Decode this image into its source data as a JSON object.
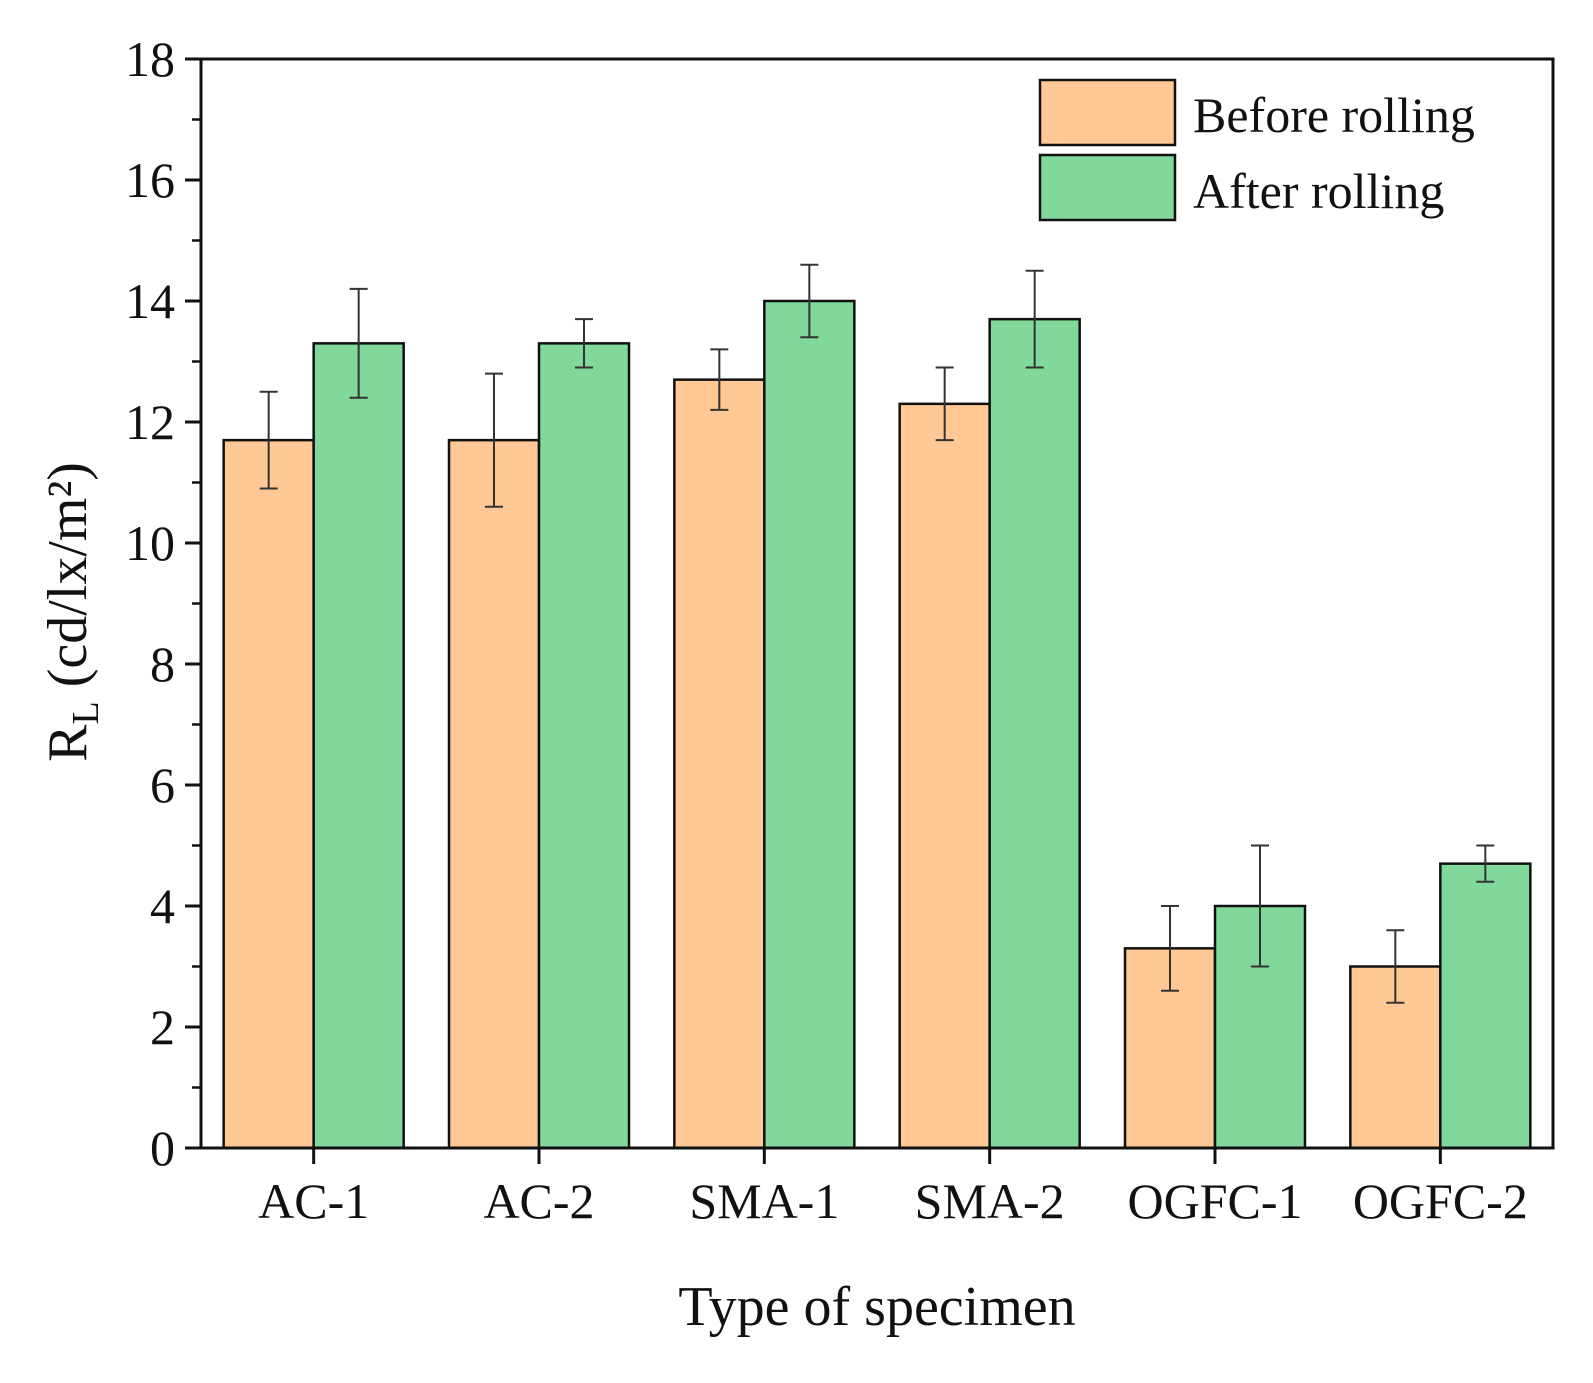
{
  "chart_data": {
    "type": "bar",
    "title": "",
    "xlabel": "Type of specimen",
    "ylabel": {
      "main": "R",
      "subscript": "L",
      "unit": "(cd/lx/m²)"
    },
    "ylim": [
      0,
      18
    ],
    "yticks": [
      "0",
      "2",
      "4",
      "6",
      "8",
      "10",
      "12",
      "14",
      "16",
      "18"
    ],
    "categories": [
      "AC-1",
      "AC-2",
      "SMA-1",
      "SMA-2",
      "OGFC-1",
      "OGFC-2"
    ],
    "series": [
      {
        "name": "Before rolling",
        "color": "#FFC894",
        "values": [
          11.7,
          11.7,
          12.7,
          12.3,
          3.3,
          3.0
        ],
        "error_low": [
          10.9,
          10.6,
          12.2,
          11.7,
          2.6,
          2.4
        ],
        "error_high": [
          12.5,
          12.8,
          13.2,
          12.9,
          4.0,
          3.6
        ]
      },
      {
        "name": "After rolling",
        "color": "#80D89A",
        "values": [
          13.3,
          13.3,
          14.0,
          13.7,
          4.0,
          4.7
        ],
        "error_low": [
          12.4,
          12.9,
          13.4,
          12.9,
          3.0,
          4.4
        ],
        "error_high": [
          14.2,
          13.7,
          14.6,
          14.5,
          5.0,
          5.0
        ]
      }
    ],
    "legend_position": "top-right",
    "grid": false
  }
}
